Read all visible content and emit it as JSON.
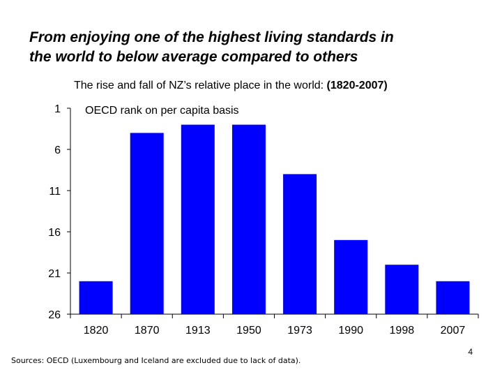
{
  "slide": {
    "headline_line1": "From enjoying one of the highest living standards in",
    "headline_line2": "the world to below average compared to others",
    "footnote": "Sources: OECD (Luxembourg and Iceland are excluded due to lack of data).",
    "page_number": "4"
  },
  "chart_data": {
    "type": "bar",
    "title_prefix": "The rise and fall of NZ’s relative place in the world: ",
    "title_years": "(1820-2007)",
    "annotation": "OECD rank on per capita basis",
    "categories": [
      "1820",
      "1870",
      "1913",
      "1950",
      "1973",
      "1990",
      "1998",
      "2007"
    ],
    "values": [
      22,
      4,
      3,
      3,
      9,
      17,
      20,
      22
    ],
    "y_axis": {
      "min": 1,
      "max": 26,
      "inverted": true,
      "ticks": [
        1,
        6,
        11,
        16,
        21,
        26
      ]
    },
    "bar_color": "#0000ff",
    "grid": false
  }
}
